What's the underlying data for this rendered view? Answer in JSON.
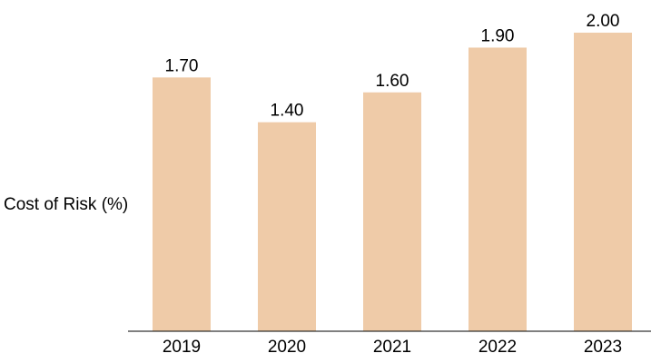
{
  "chart_data": {
    "type": "bar",
    "ylabel": "Cost of Risk (%)",
    "categories": [
      "2019",
      "2020",
      "2021",
      "2022",
      "2023"
    ],
    "values": [
      1.7,
      1.4,
      1.6,
      1.9,
      2.0
    ],
    "data_labels": [
      "1.70",
      "1.40",
      "1.60",
      "1.90",
      "2.00"
    ],
    "ylim": [
      0,
      2.0
    ],
    "grid": false,
    "bar_color": "#EFCBA8",
    "axis_color": "#000000"
  }
}
